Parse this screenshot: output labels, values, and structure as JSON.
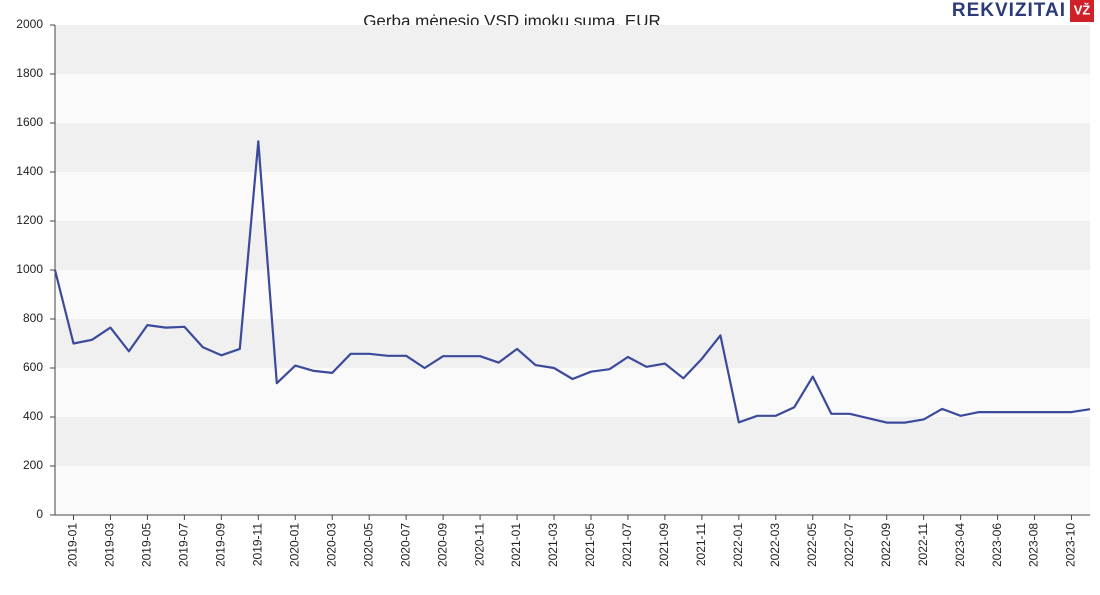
{
  "chart_data": {
    "type": "line",
    "title": "Gerba mėnesio VSD įmokų suma, EUR",
    "categories": [
      null,
      "2019-01",
      null,
      "2019-03",
      null,
      "2019-05",
      null,
      "2019-07",
      null,
      "2019-09",
      null,
      "2019-11",
      null,
      "2020-01",
      null,
      "2020-03",
      null,
      "2020-05",
      null,
      "2020-07",
      null,
      "2020-09",
      null,
      "2020-11",
      null,
      "2021-01",
      null,
      "2021-03",
      null,
      "2021-05",
      null,
      "2021-07",
      null,
      "2021-09",
      null,
      "2021-11",
      null,
      "2022-01",
      null,
      "2022-03",
      null,
      "2022-05",
      null,
      "2022-07",
      null,
      "2022-09",
      null,
      "2022-11",
      null,
      "2023-04",
      null,
      "2023-06",
      null,
      "2023-08",
      null,
      "2023-10",
      null
    ],
    "series": [
      {
        "color": "#3c4a9c",
        "values": [
          1000,
          700,
          715,
          765,
          668,
          775,
          765,
          768,
          685,
          652,
          678,
          1525,
          538,
          610,
          588,
          580,
          658,
          658,
          650,
          650,
          600,
          648,
          648,
          648,
          622,
          678,
          612,
          600,
          555,
          585,
          595,
          645,
          605,
          618,
          558,
          638,
          733,
          378,
          405,
          405,
          440,
          565,
          413,
          413,
          395,
          377,
          377,
          390,
          433,
          405,
          420,
          420,
          420,
          420,
          420,
          420,
          432
        ]
      }
    ],
    "ylim": [
      0,
      2000
    ],
    "yticks": [
      0,
      200,
      400,
      600,
      800,
      1000,
      1200,
      1400,
      1600,
      1800,
      2000
    ],
    "grid": true
  },
  "logo": {
    "text": "REKVIZITAI",
    "badge": "VŽ"
  }
}
